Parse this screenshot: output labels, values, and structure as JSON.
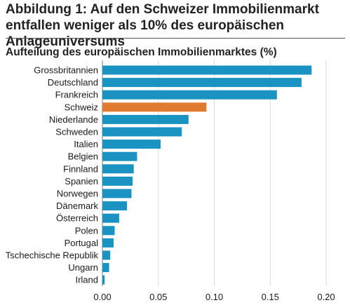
{
  "figure": {
    "title": "Abbildung 1: Auf den Schweizer Immobilienmarkt entfallen weniger als 10% des europäischen Anlageuniversums"
  },
  "colors": {
    "bar": "#1A93C2",
    "highlight": "#E07A2E",
    "grid": "#d9d9d9",
    "axis": "#7f7f7f"
  },
  "chart_data": {
    "type": "bar",
    "orientation": "horizontal",
    "title": "Aufteilung des europäischen Immobilienmarktes (%)",
    "categories": [
      "Grossbritannien",
      "Deutschland",
      "Frankreich",
      "Schweiz",
      "Niederlande",
      "Schweden",
      "Italien",
      "Belgien",
      "Finnland",
      "Spanien",
      "Norwegen",
      "Dänemark",
      "Österreich",
      "Polen",
      "Portugal",
      "Tschechische Republik",
      "Ungarn",
      "Irland"
    ],
    "values": [
      0.187,
      0.178,
      0.156,
      0.093,
      0.077,
      0.071,
      0.052,
      0.031,
      0.028,
      0.027,
      0.026,
      0.022,
      0.015,
      0.011,
      0.01,
      0.007,
      0.006,
      0.002
    ],
    "highlight_category": "Schweiz",
    "xlim": [
      0,
      0.2
    ],
    "xticks": [
      "0.00",
      "0.05",
      "0.10",
      "0.15",
      "0.20"
    ],
    "grid": true,
    "xlabel": "",
    "ylabel": ""
  }
}
